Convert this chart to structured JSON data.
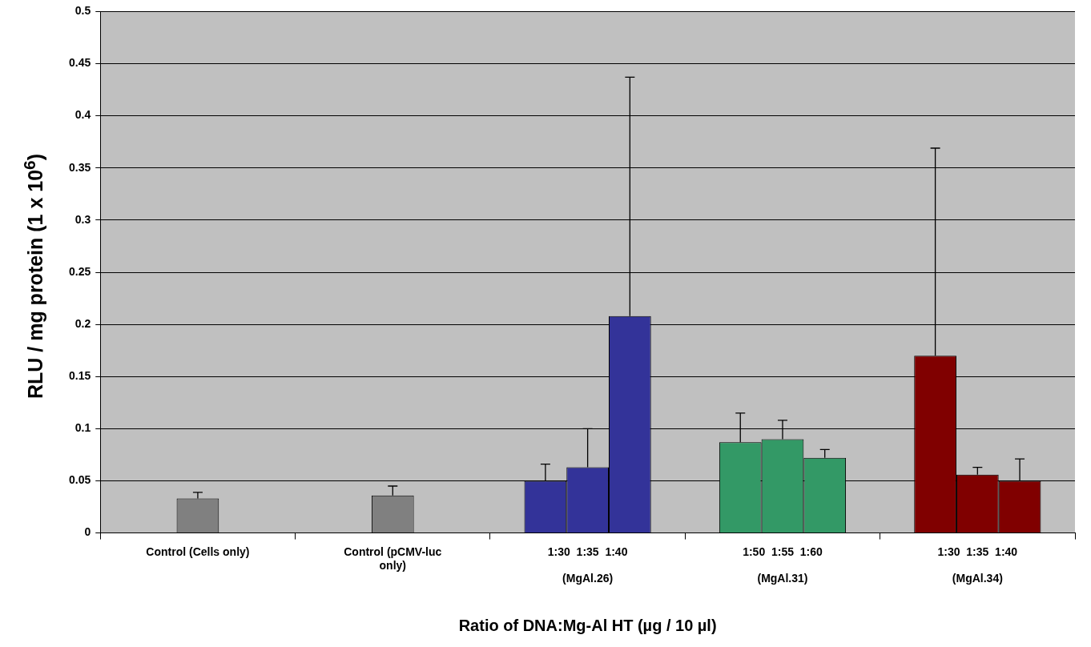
{
  "chart_data": {
    "type": "bar",
    "xlabel": "Ratio of DNA:Mg-Al HT (µg / 10 µl)",
    "ylabel": "RLU / mg protein (1 x 10$^{6}$)",
    "categories": [
      "Control (Cells only)",
      "Control (pCMV-luc\nonly)",
      "1:30  1:35  1:40\n\n(MgAl.26)",
      "1:50  1:55  1:60\n\n(MgAl.31)",
      "1:30  1:35  1:40\n\n(MgAl.34)"
    ],
    "series": [
      {
        "colors": [
          "#808080",
          "#808080",
          "#333399",
          "#339966",
          "#800000"
        ],
        "values": [
          0,
          0,
          0.05,
          0.087,
          0.17
        ],
        "errors": [
          null,
          null,
          [
            0.05,
            0.066
          ],
          [
            0.087,
            0.115
          ],
          [
            0.17,
            0.369
          ]
        ]
      },
      {
        "colors": [
          "#808080",
          "#808080",
          "#333399",
          "#339966",
          "#800000"
        ],
        "values": [
          0.033,
          0.036,
          0.063,
          0.09,
          0.056
        ],
        "errors": [
          [
            0.033,
            0.039
          ],
          [
            0.036,
            0.045
          ],
          [
            0.063,
            0.1
          ],
          [
            0.09,
            0.108
          ],
          [
            0.056,
            0.063
          ]
        ]
      },
      {
        "colors": [
          "#808080",
          "#808080",
          "#333399",
          "#339966",
          "#800000"
        ],
        "values": [
          0,
          0,
          0.208,
          0.072,
          0.05
        ],
        "errors": [
          null,
          null,
          [
            0.208,
            0.437
          ],
          [
            0.072,
            0.08
          ],
          [
            0.05,
            0.071
          ]
        ]
      }
    ],
    "ylim": [
      0,
      0.5
    ],
    "yticks": [
      0,
      0.05,
      0.1,
      0.15,
      0.2,
      0.25,
      0.3,
      0.35,
      0.4,
      0.45,
      0.5
    ],
    "grid": "y",
    "legend": false
  }
}
